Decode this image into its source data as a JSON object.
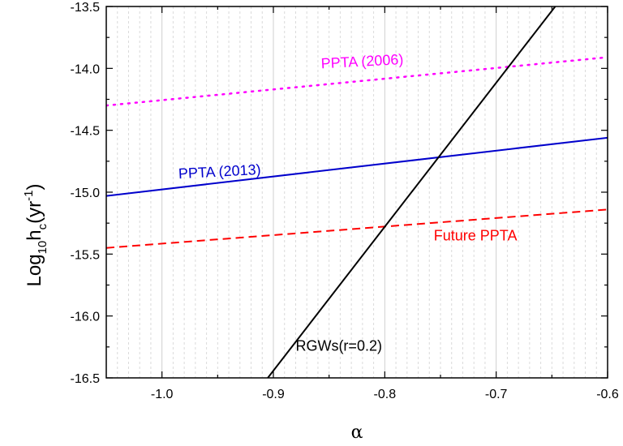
{
  "chart_data": {
    "type": "line",
    "xlabel": "α",
    "ylabel": {
      "main": "Log",
      "sub1": "10",
      "mid": "h",
      "sub2": "c",
      "open": "(yr",
      "sup": "-1",
      "close": ")"
    },
    "xlim": [
      -1.05,
      -0.6
    ],
    "ylim": [
      -16.5,
      -13.5
    ],
    "x_ticks": [
      -1.0,
      -0.9,
      -0.8,
      -0.7,
      -0.6
    ],
    "x_tick_labels": [
      "-1.0",
      "-0.9",
      "-0.8",
      "-0.7",
      "-0.6"
    ],
    "y_ticks": [
      -13.5,
      -14.0,
      -14.5,
      -15.0,
      -15.5,
      -16.0,
      -16.5
    ],
    "y_tick_labels": [
      "-13.5",
      "-14.0",
      "-14.5",
      "-15.0",
      "-15.5",
      "-16.0",
      "-16.5"
    ],
    "grid": true,
    "series": [
      {
        "name": "PPTA (2006)",
        "color": "#ff00ff",
        "style": "dotted",
        "x": [
          -1.05,
          -0.6
        ],
        "y": [
          -14.3,
          -13.91
        ]
      },
      {
        "name": "PPTA (2013)",
        "color": "#0000cc",
        "style": "solid",
        "x": [
          -1.05,
          -0.6
        ],
        "y": [
          -15.03,
          -14.56
        ]
      },
      {
        "name": "Future PPTA",
        "color": "#ff0000",
        "style": "dashed",
        "x": [
          -1.05,
          -0.6
        ],
        "y": [
          -15.45,
          -15.14
        ]
      },
      {
        "name": "RGWs(r=0.2)",
        "color": "#000000",
        "style": "solid",
        "x": [
          -0.905,
          -0.647
        ],
        "y": [
          -16.5,
          -13.5
        ]
      }
    ]
  }
}
